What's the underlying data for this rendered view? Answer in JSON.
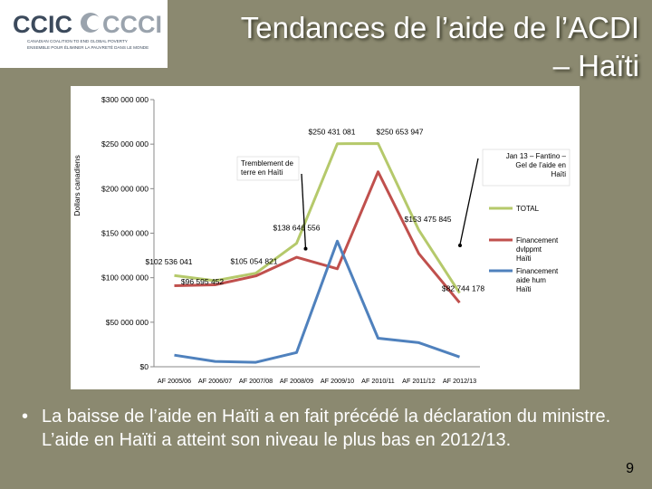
{
  "logo": {
    "name": "CCIC CCCI",
    "tagline_en": "CANADIAN COALITION TO END GLOBAL POVERTY",
    "tagline_fr": "ENSEMBLE POUR ÉLIMINER LA PAUVRETÉ DANS LE MONDE",
    "colors": {
      "dark": "#3c4a5c",
      "light": "#9aa3ad"
    }
  },
  "slide": {
    "title_line1": "Tendances de l’aide de l’ACDI",
    "title_line2": "– Haïti",
    "caption": "La baisse de l’aide en Haïti a en fait précédé la déclaration du ministre. L’aide en Haïti a atteint son niveau le plus bas en 2012/13.",
    "bullet": "•",
    "page_number": "9"
  },
  "colors": {
    "background": "#8b8970",
    "title": "#ffffff",
    "total": "#b5c96b",
    "dvlppmt": "#c0504d",
    "hum": "#4f81bd"
  },
  "chart_data": {
    "type": "line",
    "ylabel": "Dollars canadiens",
    "xlabel": "",
    "ylim": [
      0,
      300000000
    ],
    "yticks": [
      0,
      50000000,
      100000000,
      150000000,
      200000000,
      250000000,
      300000000
    ],
    "ytick_labels": [
      "$0",
      "$50 000 000",
      "$100 000 000",
      "$150 000 000",
      "$200 000 000",
      "$250 000 000",
      "$300 000 000"
    ],
    "categories": [
      "AF 2005/06",
      "AF 2006/07",
      "AF 2007/08",
      "AF 2008/09",
      "AF 2009/10",
      "AF 2010/11",
      "AF 2011/12",
      "AF 2012/13"
    ],
    "series": [
      {
        "name": "TOTAL",
        "color": "#b5c96b",
        "values": [
          102536041,
          96595452,
          105054821,
          138646556,
          250431081,
          250653947,
          153475845,
          82744178
        ]
      },
      {
        "name": "Financement dvlppmt Haïti",
        "color": "#c0504d",
        "values": [
          91000000,
          92000000,
          102000000,
          123000000,
          110000000,
          219000000,
          127000000,
          72000000
        ]
      },
      {
        "name": "Financement aide hum Haïti",
        "color": "#4f81bd",
        "values": [
          13000000,
          6000000,
          5000000,
          16000000,
          141000000,
          32000000,
          27000000,
          11000000
        ]
      }
    ],
    "data_labels": [
      {
        "text": "$102 536 041"
      },
      {
        "text": "$96 595 452"
      },
      {
        "text": "$105 054 821"
      },
      {
        "text": "$138 646 556"
      },
      {
        "text": "$250 431 081"
      },
      {
        "text": "$250 653 947"
      },
      {
        "text": "$153 475 845"
      },
      {
        "text": "$82 744 178"
      }
    ],
    "annotations": [
      {
        "text": "Tremblement de terre en Haïti"
      },
      {
        "text": "Jan 13 – Fantino – Gel de l’aide en Haïti"
      }
    ],
    "legend_position": "right",
    "grid": false
  }
}
